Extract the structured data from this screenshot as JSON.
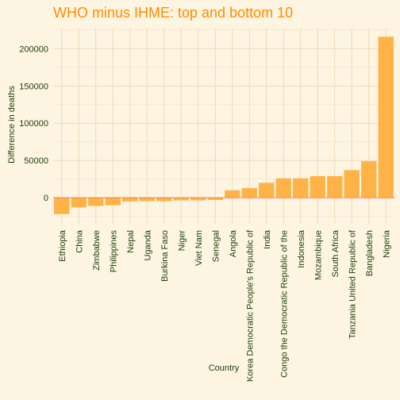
{
  "chart_data": {
    "type": "bar",
    "title": "WHO minus IHME: top and bottom 10",
    "xlabel": "Country",
    "ylabel": "Difference in deaths",
    "categories": [
      "Ethiopia",
      "China",
      "Zimbabwe",
      "Philippines",
      "Nepal",
      "Uganda",
      "Burkina Faso",
      "Niger",
      "Viet Nam",
      "Senegal",
      "Angola",
      "Korea Democratic People's Republic of",
      "India",
      "Congo the Democratic Republic of the",
      "Indonesia",
      "Mozambique",
      "South Africa",
      "Tanzania United Republic of",
      "Bangladesh",
      "Nigeria"
    ],
    "values": [
      -22000,
      -13000,
      -11000,
      -10000,
      -5000,
      -4500,
      -4500,
      -3500,
      -3500,
      -3000,
      10000,
      13000,
      20000,
      26000,
      26000,
      29000,
      29000,
      37000,
      49000,
      216000
    ],
    "yticks": [
      0,
      50000,
      100000,
      150000,
      200000
    ],
    "ylim": [
      -35000,
      228000
    ],
    "bar_color": "#ffb347",
    "zero_line_color": "#ff7f50",
    "grid": true
  }
}
